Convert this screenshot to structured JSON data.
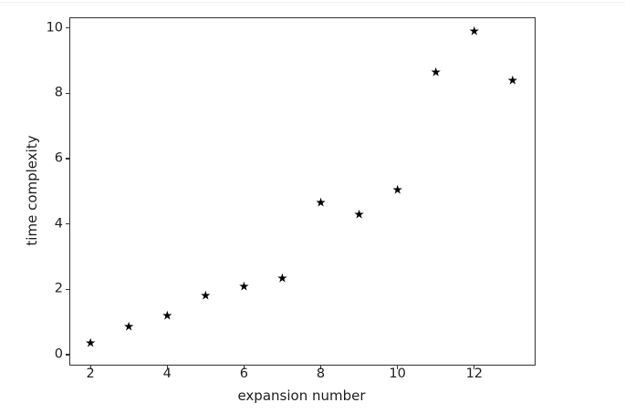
{
  "figure": {
    "background": "#ffffff",
    "spine_color": "#333333",
    "tick_color": "#333333",
    "text_color": "#1c1c1c",
    "marker_glyph": "star"
  },
  "chart_data": {
    "type": "scatter",
    "title": "",
    "xlabel": "expansion number",
    "ylabel": "time complexity",
    "marker": "star",
    "marker_color": "#000000",
    "x": [
      2,
      3,
      4,
      5,
      6,
      7,
      8,
      9,
      10,
      11,
      12,
      13
    ],
    "y": [
      0.3,
      0.8,
      1.15,
      1.75,
      2.05,
      2.3,
      4.6,
      4.25,
      5.0,
      8.6,
      9.85,
      8.35
    ],
    "xticks": [
      2,
      4,
      6,
      8,
      10,
      12
    ],
    "yticks": [
      0,
      2,
      4,
      6,
      8,
      10
    ],
    "xlim": [
      1.45,
      13.55
    ],
    "ylim": [
      -0.28,
      10.33
    ],
    "grid": false,
    "legend": null
  }
}
